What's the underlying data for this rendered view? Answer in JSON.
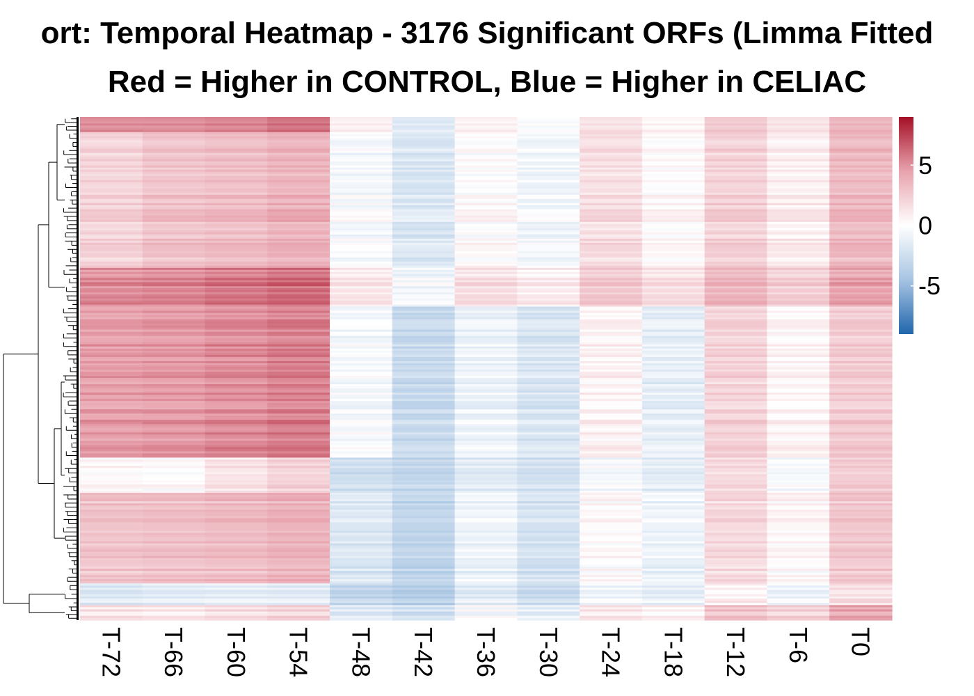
{
  "chart_data": {
    "type": "heatmap",
    "title": "ort: Temporal Heatmap - 3176 Significant ORFs (Limma Fitted",
    "subtitle": "Red = Higher in CONTROL, Blue = Higher in CELIAC",
    "columns": [
      "T-72",
      "T-66",
      "T-60",
      "T-54",
      "T-48",
      "T-42",
      "T-36",
      "T-30",
      "T-24",
      "T-18",
      "T-12",
      "T-6",
      "T0"
    ],
    "row_clusters": [
      {
        "fraction": 0.03,
        "values": [
          5.0,
          5.0,
          5.2,
          5.8,
          0.6,
          -1.8,
          0.5,
          -0.4,
          1.2,
          0.3,
          2.4,
          1.2,
          3.4
        ]
      },
      {
        "fraction": 0.27,
        "values": [
          2.2,
          3.0,
          3.3,
          3.8,
          -0.3,
          -1.8,
          0.2,
          -0.6,
          1.7,
          0.3,
          2.3,
          0.9,
          3.5
        ]
      },
      {
        "fraction": 0.077,
        "values": [
          5.2,
          5.4,
          5.8,
          6.2,
          1.2,
          -0.6,
          1.6,
          0.9,
          2.7,
          1.6,
          3.6,
          2.4,
          4.4
        ]
      },
      {
        "fraction": 0.3,
        "values": [
          4.6,
          4.8,
          5.2,
          5.6,
          -0.4,
          -2.8,
          -0.9,
          -1.9,
          0.6,
          -1.2,
          2.2,
          0.5,
          2.6
        ]
      },
      {
        "fraction": 0.07,
        "values": [
          0.2,
          0.0,
          1.2,
          2.0,
          -2.6,
          -3.2,
          -1.7,
          -2.4,
          -0.6,
          -1.5,
          1.7,
          -0.5,
          2.4
        ]
      },
      {
        "fraction": 0.18,
        "values": [
          2.8,
          3.0,
          3.2,
          3.6,
          -1.9,
          -3.3,
          -1.0,
          -2.3,
          0.1,
          -1.0,
          1.7,
          0.3,
          2.6
        ]
      },
      {
        "fraction": 0.043,
        "values": [
          -1.6,
          -1.3,
          -1.1,
          -1.3,
          -3.0,
          -3.6,
          -1.4,
          -2.6,
          -0.6,
          -1.2,
          0.7,
          -0.7,
          1.6
        ]
      },
      {
        "fraction": 0.03,
        "values": [
          1.3,
          1.1,
          1.6,
          2.1,
          -1.6,
          -2.3,
          -0.3,
          -1.3,
          1.2,
          0.6,
          3.0,
          2.2,
          4.2
        ]
      }
    ],
    "colorbar": {
      "ticks": [
        5,
        0,
        -5
      ],
      "tick_labels": [
        "5",
        "0",
        "-5"
      ],
      "range": [
        -9,
        9
      ],
      "colors": {
        "low": "#2166ac",
        "mid": "#ffffff",
        "high": "#a50f26"
      }
    },
    "dendrogram": "row"
  }
}
